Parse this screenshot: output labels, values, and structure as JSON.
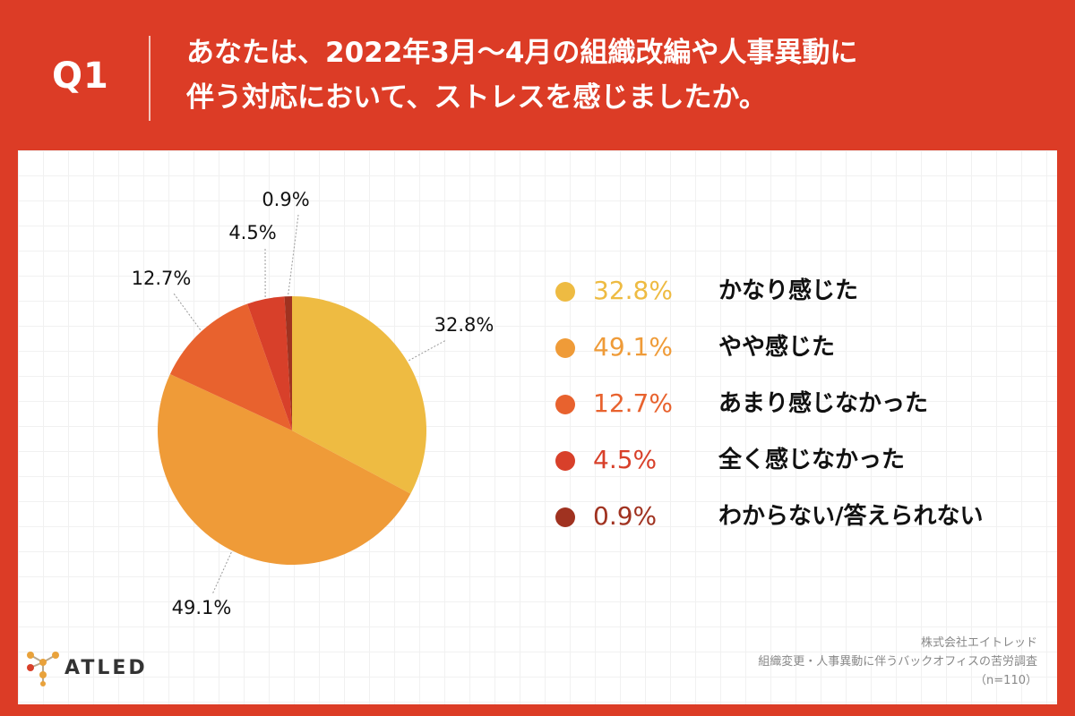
{
  "question": {
    "label": "Q1",
    "title_line1": "あなたは、2022年3月〜4月の組織改編や人事異動に",
    "title_line2": "伴う対応において、ストレスを感じましたか。"
  },
  "chart_data": {
    "type": "pie",
    "start": "12 o'clock, clockwise",
    "slices": [
      {
        "label": "かなり感じた",
        "value": 32.8,
        "display": "32.8%",
        "color": "#eebb42"
      },
      {
        "label": "やや感じた",
        "value": 49.1,
        "display": "49.1%",
        "color": "#ef9b38"
      },
      {
        "label": "あまり感じなかった",
        "value": 12.7,
        "display": "12.7%",
        "color": "#e8622e"
      },
      {
        "label": "全く感じなかった",
        "value": 4.5,
        "display": "4.5%",
        "color": "#d8402a"
      },
      {
        "label": "わからない/答えられない",
        "value": 0.9,
        "display": "0.9%",
        "color": "#a03220"
      }
    ]
  },
  "brand": {
    "name": "ATLED"
  },
  "source": {
    "company": "株式会社エイトレッド",
    "survey": "組織変更・人事異動に伴うバックオフィスの苦労調査",
    "sample": "（n=110）"
  }
}
